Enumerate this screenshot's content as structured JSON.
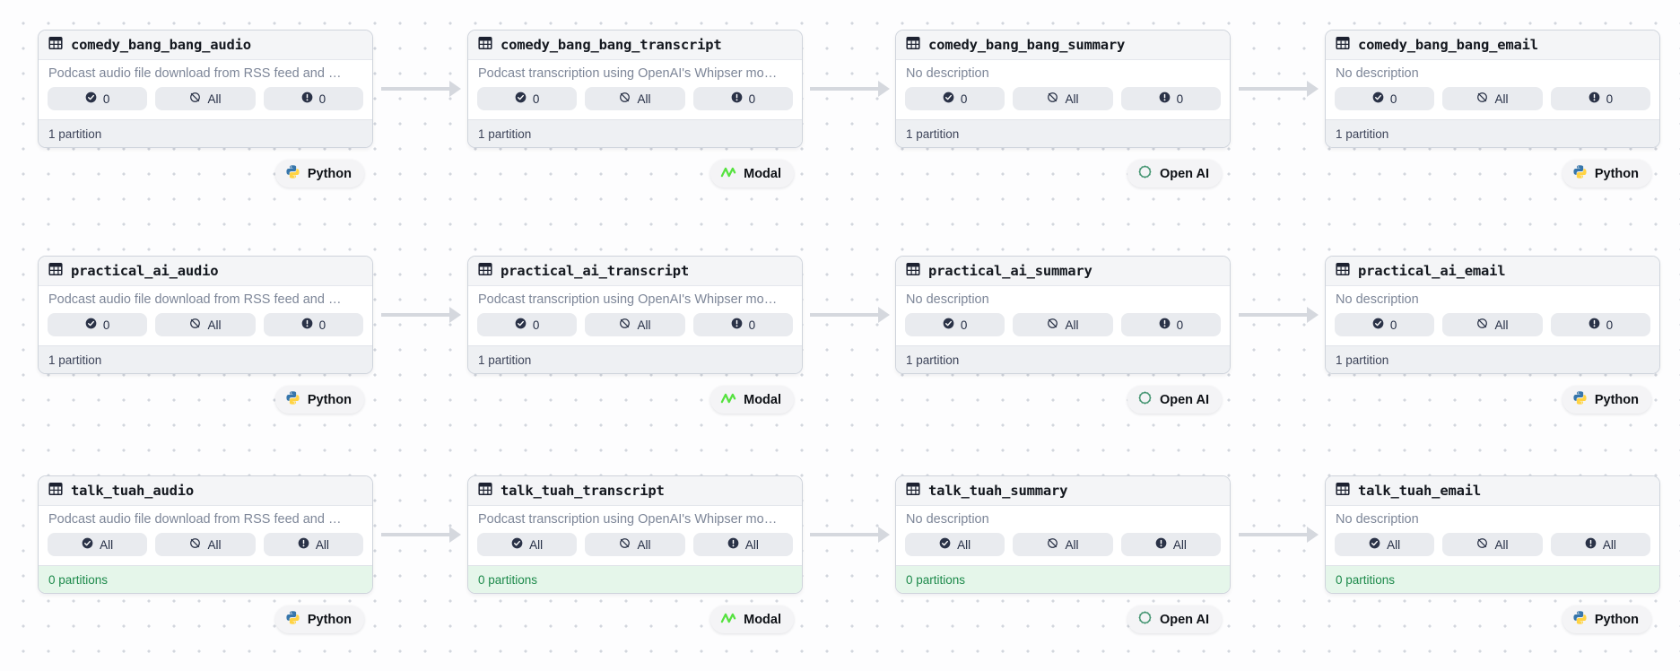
{
  "colors": {
    "node_border": "#cfd4dc",
    "badge_bg": "#e9ebef",
    "footer_green_bg": "#e5f6ea",
    "footer_green_text": "#1d8a4b",
    "arrow": "#d5d8de",
    "python_blue": "#3776ab",
    "python_yellow": "#ffd343",
    "modal_green": "#55e23f",
    "openai_teal": "#41936f",
    "icon_dark": "#2a3247"
  },
  "icons": {
    "node_type": "table-icon",
    "badge_1": "check-circle-icon",
    "badge_2": "no-slash-circle-icon",
    "badge_3": "exclamation-circle-icon"
  },
  "nodes": [
    {
      "title": "comedy_bang_bang_audio",
      "description": "Podcast audio file download from RSS feed and …",
      "materialized": "0",
      "missing": "All",
      "failed": "0",
      "footer": "1 partition",
      "tag": "Python"
    },
    {
      "title": "comedy_bang_bang_transcript",
      "description": "Podcast transcription using OpenAI's Whipser mo…",
      "materialized": "0",
      "missing": "All",
      "failed": "0",
      "footer": "1 partition",
      "tag": "Modal"
    },
    {
      "title": "comedy_bang_bang_summary",
      "description": "No description",
      "materialized": "0",
      "missing": "All",
      "failed": "0",
      "footer": "1 partition",
      "tag": "Open AI"
    },
    {
      "title": "comedy_bang_bang_email",
      "description": "No description",
      "materialized": "0",
      "missing": "All",
      "failed": "0",
      "footer": "1 partition",
      "tag": "Python"
    },
    {
      "title": "practical_ai_audio",
      "description": "Podcast audio file download from RSS feed and …",
      "materialized": "0",
      "missing": "All",
      "failed": "0",
      "footer": "1 partition",
      "tag": "Python"
    },
    {
      "title": "practical_ai_transcript",
      "description": "Podcast transcription using OpenAI's Whipser mo…",
      "materialized": "0",
      "missing": "All",
      "failed": "0",
      "footer": "1 partition",
      "tag": "Modal"
    },
    {
      "title": "practical_ai_summary",
      "description": "No description",
      "materialized": "0",
      "missing": "All",
      "failed": "0",
      "footer": "1 partition",
      "tag": "Open AI"
    },
    {
      "title": "practical_ai_email",
      "description": "No description",
      "materialized": "0",
      "missing": "All",
      "failed": "0",
      "footer": "1 partition",
      "tag": "Python"
    },
    {
      "title": "talk_tuah_audio",
      "description": "Podcast audio file download from RSS feed and …",
      "materialized": "All",
      "missing": "All",
      "failed": "All",
      "footer": "0 partitions",
      "tag": "Python"
    },
    {
      "title": "talk_tuah_transcript",
      "description": "Podcast transcription using OpenAI's Whipser mo…",
      "materialized": "All",
      "missing": "All",
      "failed": "All",
      "footer": "0 partitions",
      "tag": "Modal"
    },
    {
      "title": "talk_tuah_summary",
      "description": "No description",
      "materialized": "All",
      "missing": "All",
      "failed": "All",
      "footer": "0 partitions",
      "tag": "Open AI"
    },
    {
      "title": "talk_tuah_email",
      "description": "No description",
      "materialized": "All",
      "missing": "All",
      "failed": "All",
      "footer": "0 partitions",
      "tag": "Python"
    }
  ]
}
